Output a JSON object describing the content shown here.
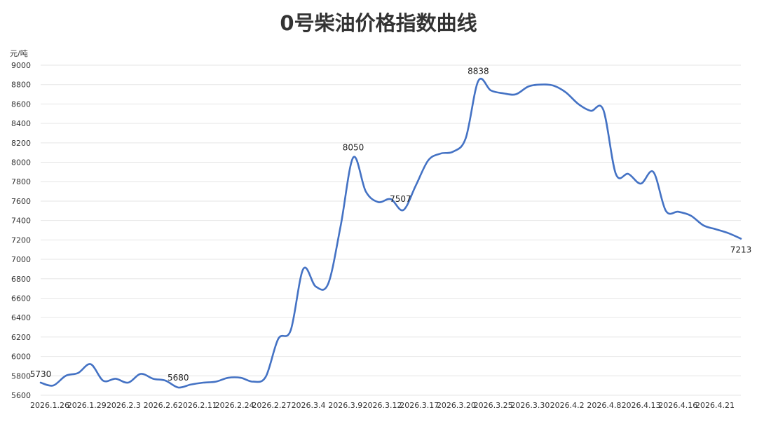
{
  "title": "0号柴油价格指数曲线",
  "chart_data": {
    "type": "line",
    "title": "0号柴油价格指数曲线",
    "ylabel": "元/吨",
    "xlabel": "",
    "ylim": [
      5600,
      9000
    ],
    "yticks": [
      5600,
      5800,
      6000,
      6200,
      6400,
      6600,
      6800,
      7000,
      7200,
      7400,
      7600,
      7800,
      8000,
      8200,
      8400,
      8600,
      8800,
      9000
    ],
    "grid": true,
    "color": "#4472c4",
    "x_tick_labels": [
      "2026.1.26",
      "2026.1.29",
      "2026.2.3",
      "2026.2.6",
      "2026.2.11",
      "2026.2.24",
      "2026.2.27",
      "2026.3.4",
      "2026.3.9",
      "2026.3.12",
      "2026.3.17",
      "2026.3.20",
      "2026.3.25",
      "2026.3.30",
      "2026.4.2",
      "2026.4.8",
      "2026.4.13",
      "2026.4.16",
      "2026.4.21"
    ],
    "series": [
      {
        "values": [
          5730,
          5700,
          5800,
          5830,
          5920,
          5750,
          5770,
          5730,
          5820,
          5770,
          5750,
          5680,
          5710,
          5730,
          5740,
          5780,
          5780,
          5740,
          5790,
          6180,
          6270,
          6900,
          6720,
          6750,
          7350,
          8050,
          7700,
          7590,
          7620,
          7507,
          7760,
          8020,
          8090,
          8110,
          8250,
          8838,
          8740,
          8710,
          8700,
          8780,
          8800,
          8790,
          8720,
          8600,
          8530,
          8540,
          7880,
          7880,
          7780,
          7900,
          7500,
          7490,
          7450,
          7350,
          7310,
          7270,
          7213
        ]
      }
    ],
    "annotations": [
      "5730",
      "5680",
      "8050",
      "7507",
      "8838",
      "7213"
    ]
  }
}
